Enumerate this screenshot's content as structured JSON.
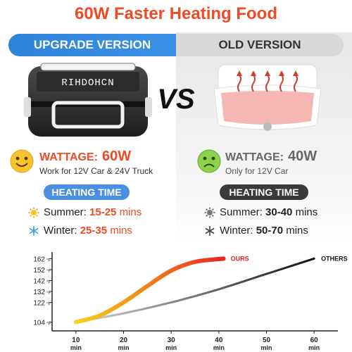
{
  "headline": "60W Faster Heating Food",
  "banners": {
    "upgrade": "UPGRADE VERSION",
    "old": "OLD VERSION"
  },
  "product": {
    "brand": "RIHDOHCN"
  },
  "vs_label": "VS",
  "left": {
    "wattage_label": "WATTAGE:",
    "wattage_value": "60W",
    "note": "Work for 12V Car & 24V Truck",
    "heating_time_label": "HEATING TIME",
    "summer_label": "Summer:",
    "summer_value": "15-25",
    "summer_unit": "mins",
    "winter_label": "Winter:",
    "winter_value": "25-35",
    "winter_unit": "mins"
  },
  "right": {
    "wattage_label": "WATTAGE:",
    "wattage_value": "40W",
    "note": "Only for 12V Car",
    "heating_time_label": "HEATING TIME",
    "summer_label": "Summer:",
    "summer_value": "30-40",
    "summer_unit": "mins",
    "winter_label": "Winter:",
    "winter_value": "50-70",
    "winter_unit": "mins"
  },
  "colors": {
    "accent": "#ef4a23",
    "blue": "#2f83d8",
    "pill_blue": "#4a8fe0",
    "pill_dark": "#3a3a3a",
    "old_value": "#666666"
  },
  "icons": {
    "happy": "happy-face-icon",
    "sad": "sad-face-icon",
    "sun": "sun-icon",
    "snow": "snowflake-icon"
  },
  "chart_data": {
    "type": "line",
    "y_unit": "°F",
    "x_unit": "min",
    "xlim": [
      5,
      65
    ],
    "ylim": [
      96,
      168
    ],
    "x_ticks": [
      10,
      20,
      30,
      40,
      50,
      60
    ],
    "y_ticks": [
      104,
      122,
      132,
      142,
      152,
      162
    ],
    "series": [
      {
        "name": "OURS",
        "x": [
          10,
          15,
          20,
          25,
          30,
          35,
          41
        ],
        "y": [
          104,
          110,
          122,
          137,
          151,
          159,
          162
        ]
      },
      {
        "name": "OTHERS",
        "x": [
          10,
          20,
          30,
          40,
          50,
          60
        ],
        "y": [
          104,
          112,
          122,
          134,
          148,
          162
        ]
      }
    ]
  }
}
